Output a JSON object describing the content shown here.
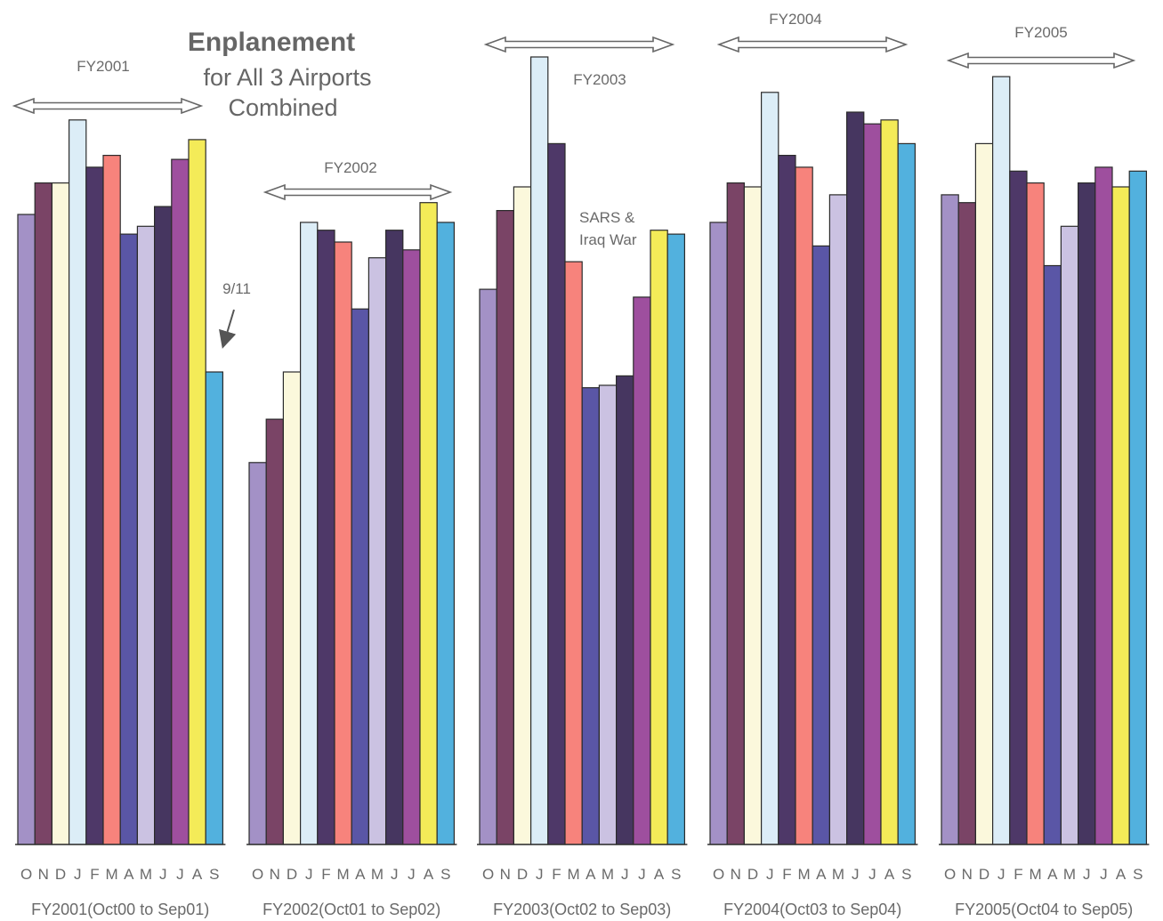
{
  "chart_data": {
    "type": "bar",
    "title": "Enplanement",
    "subtitle": "for All 3 Airports Combined",
    "month_labels": [
      "O",
      "N",
      "D",
      "J",
      "F",
      "M",
      "A",
      "M",
      "J",
      "J",
      "A",
      "S"
    ],
    "ylim": [
      0,
      100
    ],
    "groups": [
      {
        "group_label": "FY2001(Oct00 to Sep01)",
        "period_label": "FY2001",
        "values": [
          80,
          84,
          84,
          92,
          86,
          87.5,
          77.5,
          78.5,
          81,
          87,
          89.5,
          60
        ]
      },
      {
        "group_label": "FY2002(Oct01 to Sep02)",
        "period_label": "FY2002",
        "values": [
          48.5,
          54,
          60,
          79,
          78,
          76.5,
          68,
          74.5,
          78,
          75.5,
          81.5,
          79
        ]
      },
      {
        "group_label": "FY2003(Oct02 to Sep03)",
        "period_label": "FY2003",
        "values": [
          70.5,
          80.5,
          83.5,
          100,
          89,
          74,
          58,
          58.3,
          59.5,
          69.5,
          78,
          77.5
        ]
      },
      {
        "group_label": "FY2004(Oct03 to Sep04)",
        "period_label": "FY2004",
        "values": [
          79,
          84,
          83.5,
          95.5,
          87.5,
          86,
          76,
          82.5,
          93,
          91.5,
          92,
          89
        ]
      },
      {
        "group_label": "FY2005(Oct04 to Sep05)",
        "period_label": "FY2005",
        "values": [
          82.5,
          81.5,
          89,
          97.5,
          85.5,
          84,
          73.5,
          78.5,
          84,
          86,
          83.5,
          85.5
        ]
      }
    ],
    "month_colors": [
      "#a391c6",
      "#7a4466",
      "#fbf8dc",
      "#dcedf7",
      "#4e3868",
      "#f7837c",
      "#5a56a6",
      "#cbc2e2",
      "#463660",
      "#9e4f9e",
      "#f4eb58",
      "#52b1de"
    ],
    "annotations": {
      "nine_eleven": "9/11",
      "sars_line1": "SARS &",
      "sars_line2": "Iraq War"
    }
  }
}
